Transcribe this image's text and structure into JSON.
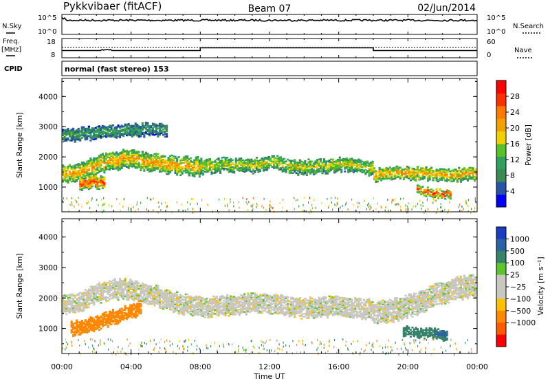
{
  "header": {
    "station": "Pykkvibaer (fitACF)",
    "beam": "Beam 07",
    "date": "02/Jun/2014"
  },
  "side_labels": {
    "nsky": "N.Sky",
    "nsearch": "N.Search",
    "freq": "Freq.",
    "freq_unit": "[MHz]",
    "nave": "Nave",
    "cpid": "CPID",
    "cpid_value": "normal (fast stereo) 153"
  },
  "noise_panel": {
    "left_ticks": [
      "10^5",
      "10^0"
    ],
    "right_ticks": [
      "10^5",
      "10^0"
    ]
  },
  "freq_panel": {
    "left_ticks": [
      "18",
      "8"
    ],
    "right_ticks": [
      "60",
      "0"
    ]
  },
  "colors": {
    "power_scale": [
      "#0000ff",
      "#2854a8",
      "#3a8a55",
      "#30a060",
      "#58c028",
      "#f0d000",
      "#f0a000",
      "#ff7800",
      "#ff3000",
      "#ff0000"
    ],
    "velocity_scale": [
      "#1a3cc0",
      "#2a62a4",
      "#37826b",
      "#5cc42c",
      "#c8c8c0",
      "#c8c8c0",
      "#ffc000",
      "#ff8800",
      "#ff5a00",
      "#ff0000"
    ]
  },
  "chart_data": [
    {
      "type": "heatmap",
      "name": "power",
      "xlabel": "",
      "ylabel": "Slant Range [km]",
      "x_range_hours": [
        0,
        24
      ],
      "ylim": [
        180,
        4600
      ],
      "y_ticks": [
        "1000",
        "2000",
        "3000",
        "4000"
      ],
      "colorbar_label": "Power [dB]",
      "colorbar_ticks": [
        "4",
        "8",
        "12",
        "16",
        "20",
        "24",
        "28"
      ],
      "colorbar_range": [
        0,
        32
      ],
      "bands": [
        {
          "t0": 0.0,
          "t1": 8.0,
          "r_center": [
            1400,
            1500,
            1750,
            1850,
            1950,
            1800,
            1750,
            1700,
            1650
          ],
          "width": 550,
          "level": 22
        },
        {
          "t0": 8.0,
          "t1": 18.0,
          "r_center": [
            1650,
            1750,
            1700,
            1800,
            1650,
            1700,
            1750,
            1600
          ],
          "width": 450,
          "level": 18
        },
        {
          "t0": 18.0,
          "t1": 24.0,
          "r_center": [
            1400,
            1450,
            1450,
            1400,
            1400,
            1450
          ],
          "width": 400,
          "level": 22
        },
        {
          "t0": 1.0,
          "t1": 2.5,
          "r_center": [
            1100,
            1150,
            1200
          ],
          "width": 400,
          "level": 27
        },
        {
          "t0": 20.5,
          "t1": 22.5,
          "r_center": [
            900,
            800,
            750
          ],
          "width": 250,
          "level": 28
        },
        {
          "t0": 0.0,
          "t1": 6.0,
          "r_center": [
            2700,
            2800,
            2900,
            2900
          ],
          "width": 400,
          "level": 11
        }
      ]
    },
    {
      "type": "heatmap",
      "name": "velocity",
      "xlabel": "Time UT",
      "ylabel": "Slant Range [km]",
      "x_range_hours": [
        0,
        24
      ],
      "ylim": [
        180,
        4600
      ],
      "x_ticks": [
        "00:00",
        "04:00",
        "08:00",
        "12:00",
        "16:00",
        "20:00",
        "00:00"
      ],
      "y_ticks": [
        "1000",
        "2000",
        "3000",
        "4000"
      ],
      "colorbar_label": "Velocity [m s⁻¹]",
      "colorbar_ticks": [
        "1000",
        "500",
        "100",
        "25",
        "−25",
        "−100",
        "−500",
        "−1000"
      ],
      "colorbar_range": [
        -1200,
        1200
      ],
      "bands": [
        {
          "t0": 0.0,
          "t1": 8.0,
          "r_center": [
            1800,
            1900,
            2200,
            2300,
            2200,
            2000,
            1800,
            1700
          ],
          "width": 600,
          "level": 0
        },
        {
          "t0": 8.0,
          "t1": 18.0,
          "r_center": [
            1650,
            1750,
            1800,
            1800,
            1650,
            1700,
            1700,
            1600
          ],
          "width": 600,
          "level": 0
        },
        {
          "t0": 18.0,
          "t1": 24.0,
          "r_center": [
            1500,
            1600,
            1800,
            2100,
            2300,
            2400
          ],
          "width": 700,
          "level": 0
        },
        {
          "t0": 0.5,
          "t1": 4.6,
          "r_center": [
            1000,
            1100,
            1300,
            1500,
            1700
          ],
          "width": 450,
          "level": -450
        },
        {
          "t0": 19.7,
          "t1": 22.3,
          "r_center": [
            900,
            850,
            750
          ],
          "width": 300,
          "level": 300
        },
        {
          "t0": 21.5,
          "t1": 22.2,
          "r_center": [
            800,
            750
          ],
          "width": 200,
          "level": 900
        }
      ]
    }
  ]
}
